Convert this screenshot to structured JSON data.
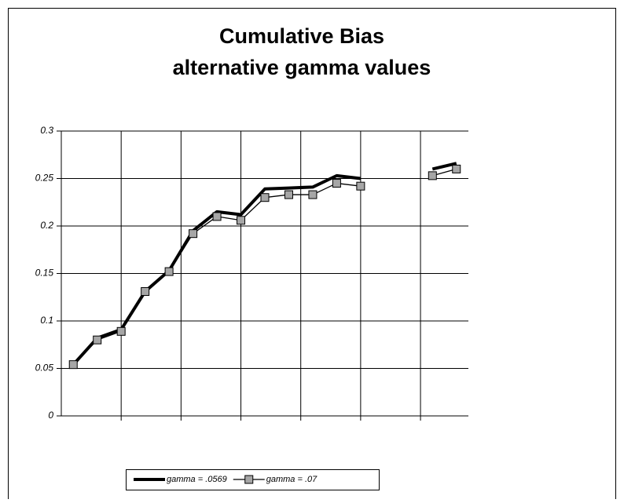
{
  "chart_data": {
    "type": "line",
    "title": [
      "Cumulative Bias",
      "alternative gamma values"
    ],
    "categories": [
      null,
      null,
      null,
      null,
      null,
      null,
      null,
      null,
      null,
      null,
      null,
      null,
      null,
      null,
      null,
      null,
      null
    ],
    "series": [
      {
        "name": "gamma = .0569",
        "color": "#000000",
        "marker": "none",
        "values": [
          0.054,
          0.082,
          0.091,
          0.131,
          0.153,
          0.195,
          0.215,
          0.212,
          0.239,
          0.24,
          0.241,
          0.253,
          0.25,
          null,
          null,
          0.26,
          0.266
        ]
      },
      {
        "name": "gamma = .07",
        "color": "#000000",
        "marker": "square",
        "marker_color": "#a6a6a6",
        "values": [
          0.054,
          0.08,
          0.089,
          0.131,
          0.152,
          0.192,
          0.21,
          0.206,
          0.23,
          0.233,
          0.233,
          0.245,
          0.242,
          null,
          null,
          0.253,
          0.26
        ]
      }
    ],
    "ylim": [
      0,
      0.3
    ],
    "yticks": [
      0,
      0.05,
      0.1,
      0.15,
      0.2,
      0.25,
      0.3
    ],
    "grid": true,
    "legend": "bottom"
  }
}
